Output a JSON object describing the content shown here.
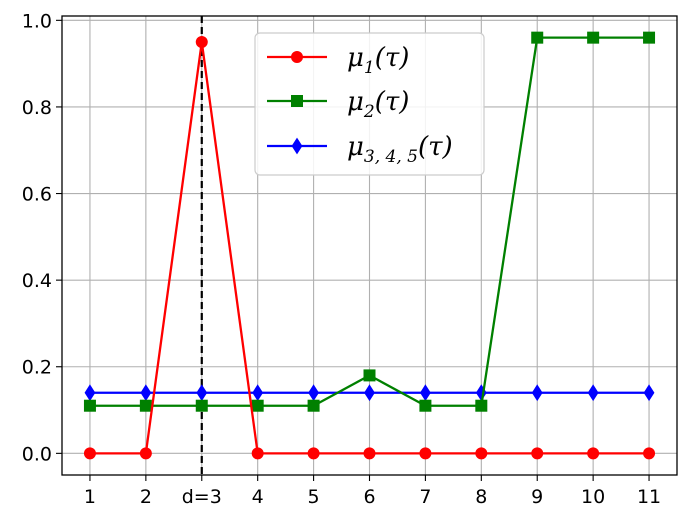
{
  "chart_data": {
    "type": "line",
    "categories": [
      "1",
      "2",
      "d=3",
      "4",
      "5",
      "6",
      "7",
      "8",
      "9",
      "10",
      "11"
    ],
    "x": [
      1,
      2,
      3,
      4,
      5,
      6,
      7,
      8,
      9,
      10,
      11
    ],
    "ylim": [
      -0.05,
      1.01
    ],
    "yticks": [
      0.0,
      0.2,
      0.4,
      0.6,
      0.8,
      1.0
    ],
    "ytick_labels": [
      "0.0",
      "0.2",
      "0.4",
      "0.6",
      "0.8",
      "1.0"
    ],
    "grid": true,
    "vline": {
      "x": 3,
      "style": "dashed",
      "color": "#000000"
    },
    "legend": {
      "placement": "top-center"
    },
    "series": [
      {
        "name": "μ1(τ)",
        "name_base": "μ",
        "name_sub": "1",
        "name_arg": "(τ)",
        "color": "#ff0000",
        "marker": "circle",
        "x": [
          1,
          2,
          3,
          4,
          5,
          6,
          7,
          8,
          9,
          10,
          11
        ],
        "values": [
          0.0,
          0.0,
          0.95,
          0.0,
          0.0,
          0.0,
          0.0,
          0.0,
          0.0,
          0.0,
          0.0
        ]
      },
      {
        "name": "μ2(τ)",
        "name_base": "μ",
        "name_sub": "2",
        "name_arg": "(τ)",
        "color": "#008000",
        "marker": "square",
        "x": [
          1,
          2,
          3,
          4,
          5,
          6,
          7,
          8,
          9,
          10,
          11
        ],
        "values": [
          0.11,
          0.11,
          0.11,
          0.11,
          0.11,
          0.18,
          0.11,
          0.11,
          0.96,
          0.96,
          0.96
        ]
      },
      {
        "name": "μ3, 4, 5(τ)",
        "name_base": "μ",
        "name_sub": "3, 4, 5",
        "name_arg": "(τ)",
        "color": "#0000ff",
        "marker": "diamond",
        "x": [
          1,
          2,
          3,
          4,
          5,
          6,
          7,
          8,
          9,
          10,
          11
        ],
        "values": [
          0.14,
          0.14,
          0.14,
          0.14,
          0.14,
          0.14,
          0.14,
          0.14,
          0.14,
          0.14,
          0.14
        ]
      }
    ]
  }
}
